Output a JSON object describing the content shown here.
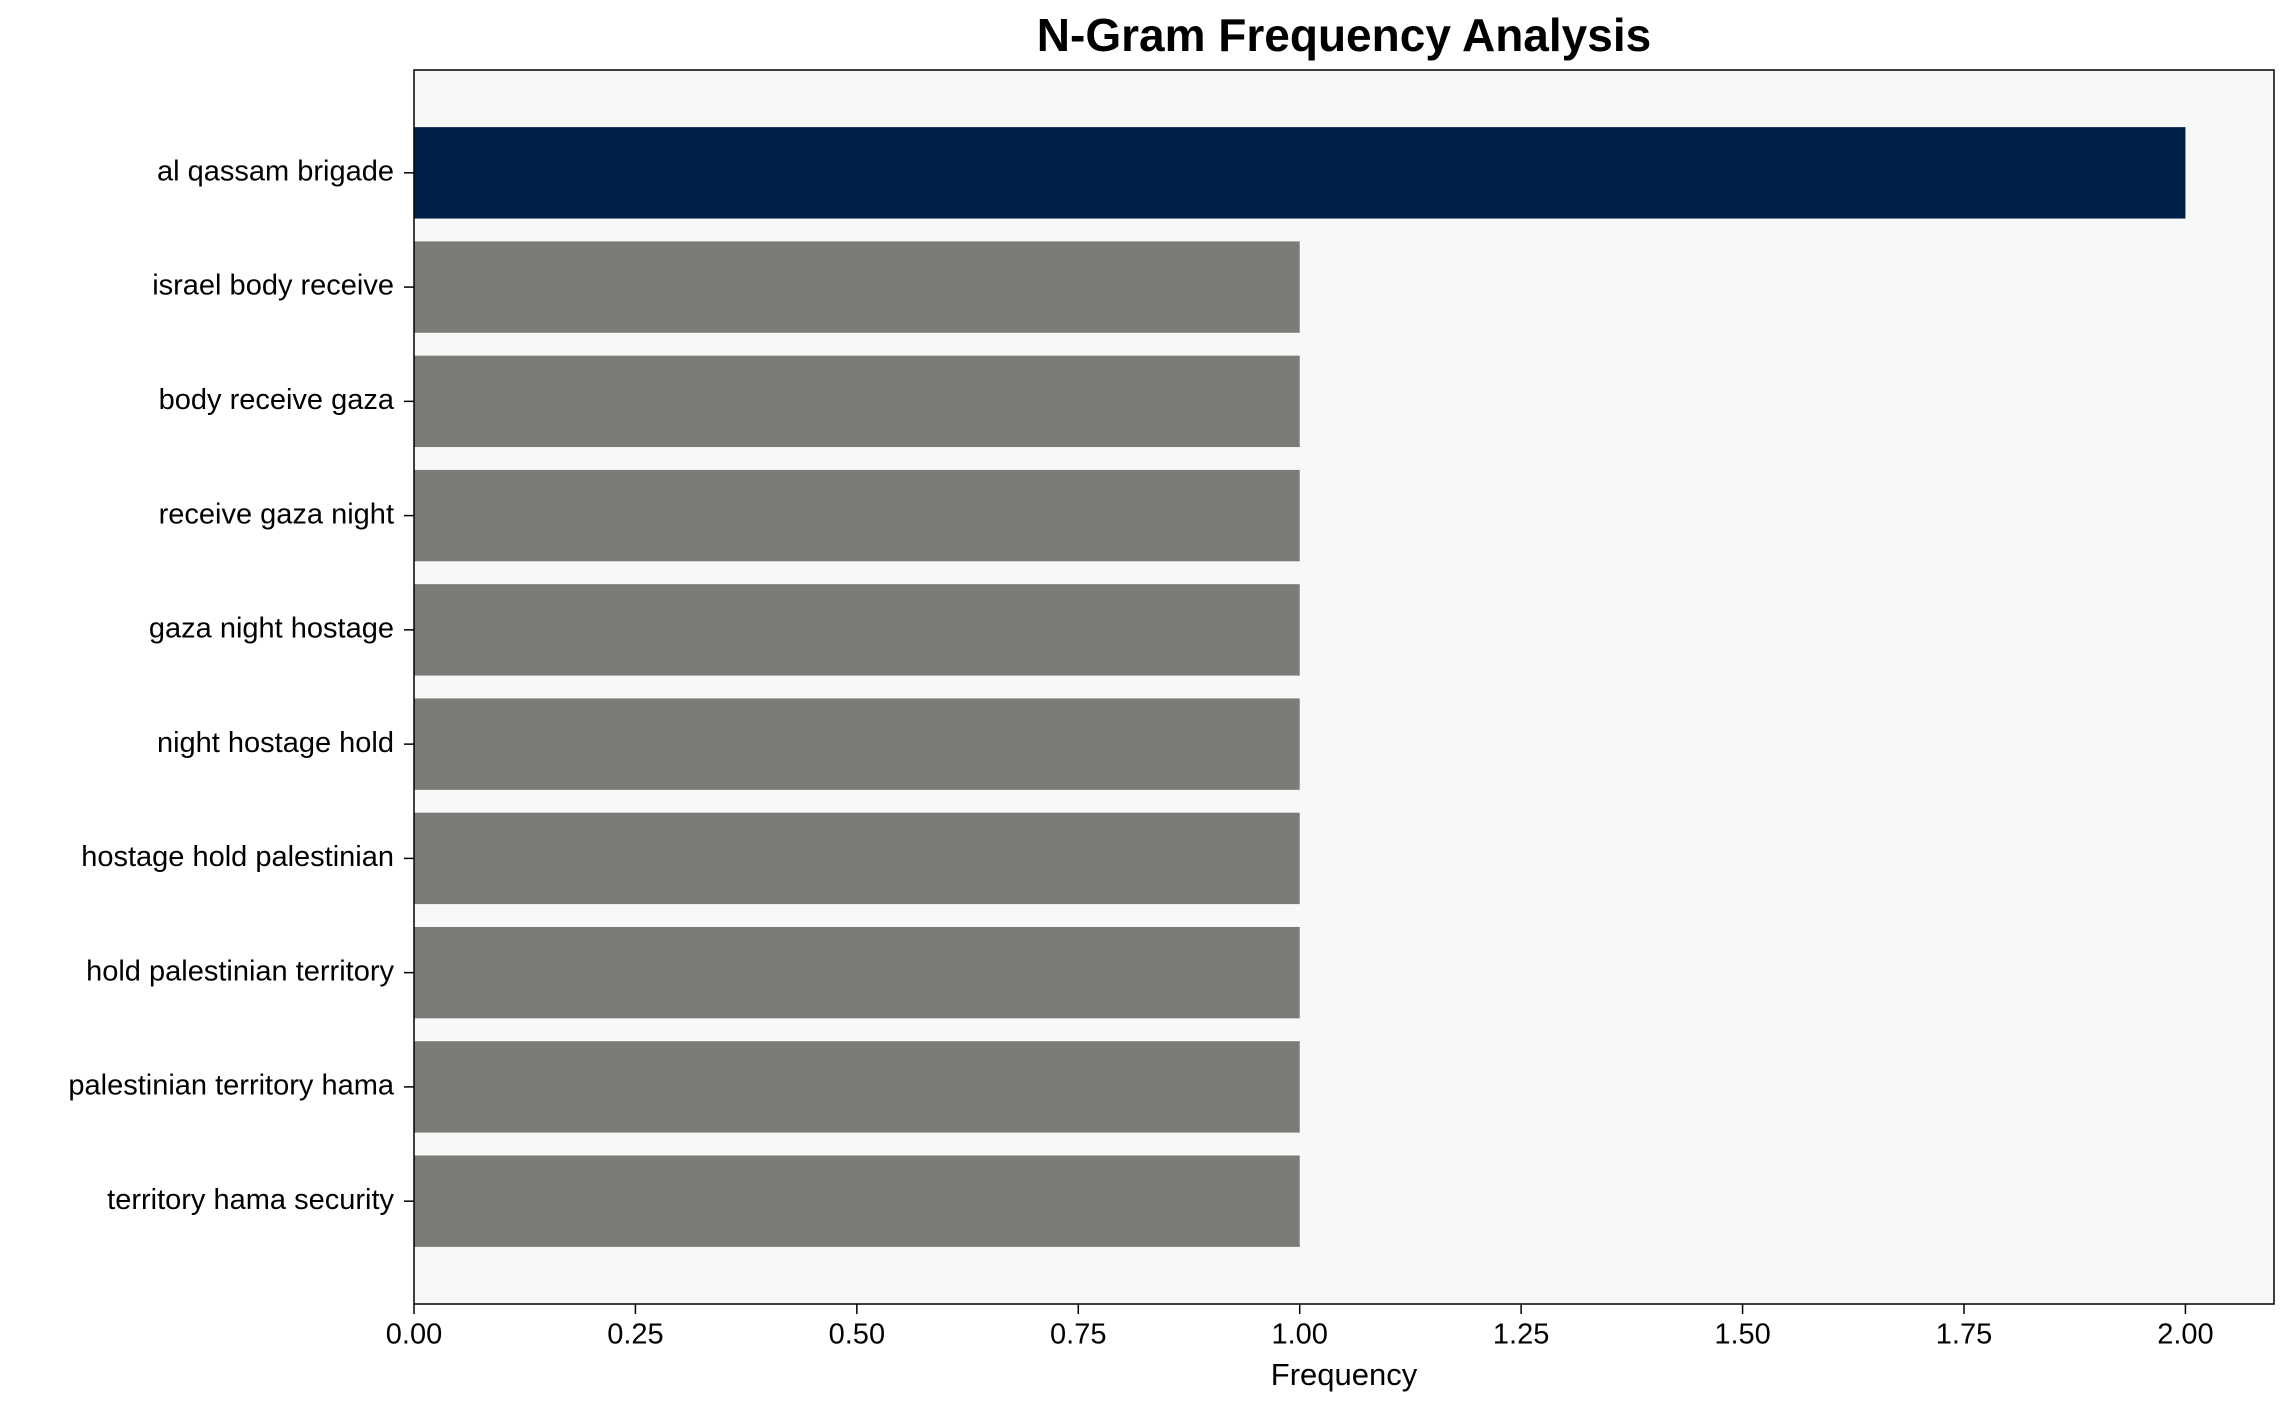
{
  "chart_data": {
    "type": "barh",
    "title": "N-Gram Frequency Analysis",
    "xlabel": "Frequency",
    "categories": [
      "al qassam brigade",
      "israel body receive",
      "body receive gaza",
      "receive gaza night",
      "gaza night hostage",
      "night hostage hold",
      "hostage hold palestinian",
      "hold palestinian territory",
      "palestinian territory hama",
      "territory hama security"
    ],
    "values": [
      2,
      1,
      1,
      1,
      1,
      1,
      1,
      1,
      1,
      1
    ],
    "colors": [
      "#002147",
      "#7c7b78",
      "#7c7b78",
      "#7c7b78",
      "#7c7b78",
      "#7c7b78",
      "#7c7b78",
      "#7c7b78",
      "#7c7b78",
      "#7c7b78"
    ],
    "xlim": [
      0,
      2.1
    ],
    "xticks": [
      {
        "value": 0,
        "label": "0.00"
      },
      {
        "value": 0.25,
        "label": "0.25"
      },
      {
        "value": 0.5,
        "label": "0.50"
      },
      {
        "value": 0.75,
        "label": "0.75"
      },
      {
        "value": 1,
        "label": "1.00"
      },
      {
        "value": 1.25,
        "label": "1.25"
      },
      {
        "value": 1.5,
        "label": "1.50"
      },
      {
        "value": 1.75,
        "label": "1.75"
      },
      {
        "value": 2,
        "label": "2.00"
      }
    ],
    "grid": false
  }
}
